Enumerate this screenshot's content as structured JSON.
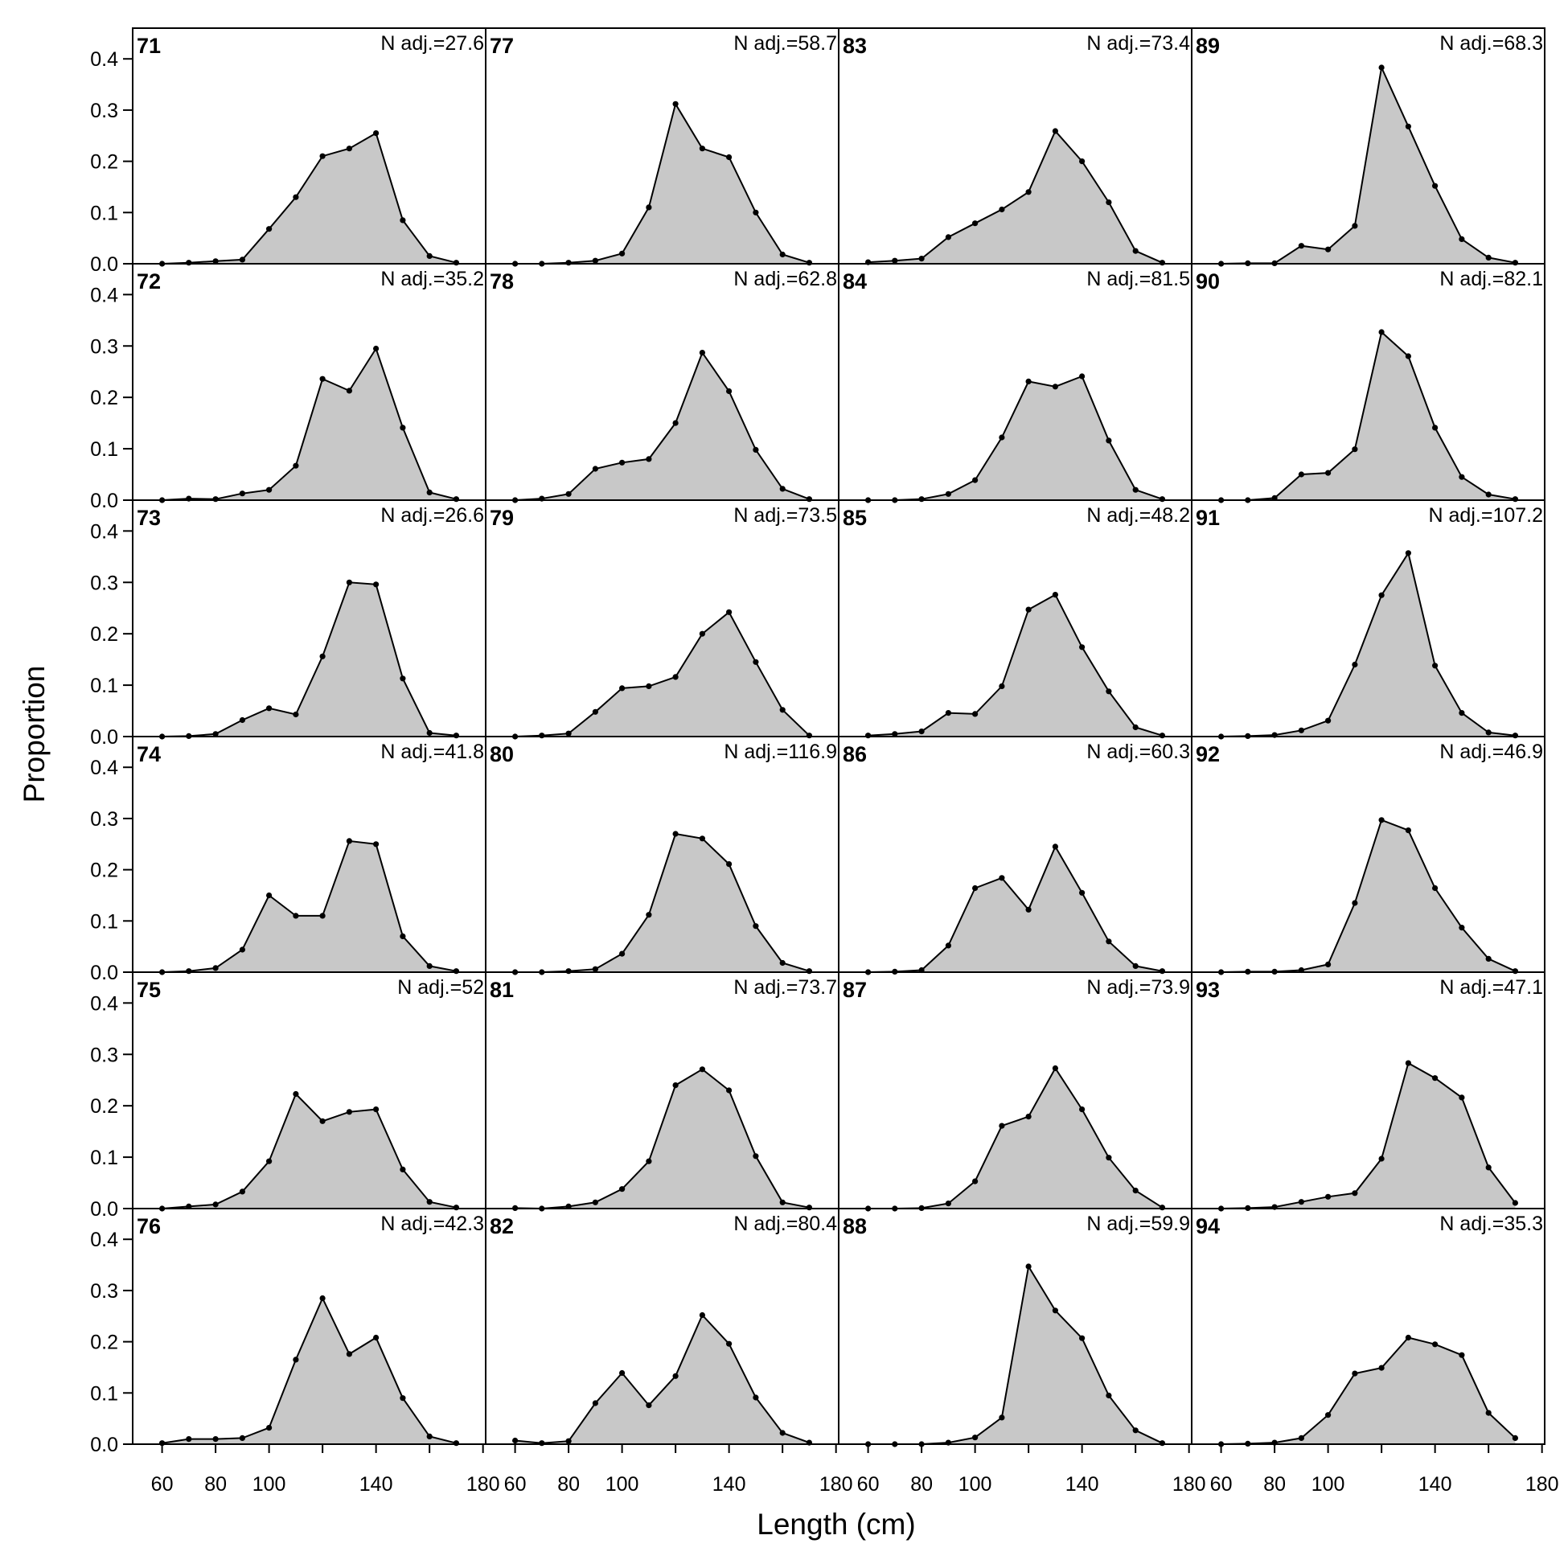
{
  "chart_data": {
    "type": "area",
    "title": "",
    "xlabel": "Length (cm)",
    "ylabel": "Proportion",
    "xlim": [
      49,
      181
    ],
    "ylim": [
      0,
      0.46
    ],
    "xticks": [
      60,
      80,
      100,
      140,
      180
    ],
    "yticks": [
      0.0,
      0.1,
      0.2,
      0.3,
      0.4
    ],
    "xtick_labels": [
      "60",
      "80",
      "100",
      "140",
      "180"
    ],
    "ytick_labels": [
      "0.0",
      "0.1",
      "0.2",
      "0.3",
      "0.4"
    ],
    "layout": "4 columns x 6 rows, filled column-wise",
    "grid": false,
    "legend": "none",
    "colors": {
      "fill": "#c8c8c8",
      "line": "#000000",
      "frame": "#000000"
    },
    "x": [
      60,
      70,
      80,
      90,
      100,
      110,
      120,
      130,
      140,
      150,
      160,
      170
    ],
    "panels": [
      {
        "label": "71",
        "n": "N adj.=27.6",
        "values": [
          0.0,
          0.002,
          0.005,
          0.008,
          0.068,
          0.13,
          0.21,
          0.225,
          0.255,
          0.085,
          0.015,
          0.002
        ]
      },
      {
        "label": "72",
        "n": "N adj.=35.2",
        "values": [
          0.0,
          0.003,
          0.002,
          0.013,
          0.02,
          0.067,
          0.236,
          0.213,
          0.295,
          0.141,
          0.015,
          0.002
        ]
      },
      {
        "label": "73",
        "n": "N adj.=26.6",
        "values": [
          0.0,
          0.001,
          0.005,
          0.032,
          0.055,
          0.043,
          0.156,
          0.3,
          0.296,
          0.113,
          0.007,
          0.002
        ]
      },
      {
        "label": "74",
        "n": "N adj.=41.8",
        "values": [
          0.0,
          0.002,
          0.008,
          0.044,
          0.15,
          0.11,
          0.11,
          0.256,
          0.25,
          0.07,
          0.012,
          0.002
        ]
      },
      {
        "label": "75",
        "n": "N adj.=52",
        "values": [
          0.0,
          0.004,
          0.008,
          0.033,
          0.092,
          0.223,
          0.17,
          0.188,
          0.193,
          0.076,
          0.013,
          0.002
        ]
      },
      {
        "label": "76",
        "n": "N adj.=42.3",
        "values": [
          0.002,
          0.01,
          0.01,
          0.012,
          0.032,
          0.165,
          0.285,
          0.176,
          0.208,
          0.09,
          0.015,
          0.002
        ]
      },
      {
        "label": "77",
        "n": "N adj.=58.7",
        "values": [
          0.0,
          0.0,
          0.002,
          0.006,
          0.02,
          0.11,
          0.312,
          0.225,
          0.208,
          0.1,
          0.018,
          0.002
        ]
      },
      {
        "label": "78",
        "n": "N adj.=62.8",
        "values": [
          0.0,
          0.003,
          0.012,
          0.061,
          0.073,
          0.08,
          0.15,
          0.287,
          0.212,
          0.098,
          0.022,
          0.002
        ]
      },
      {
        "label": "79",
        "n": "N adj.=73.5",
        "values": [
          0.0,
          0.002,
          0.006,
          0.048,
          0.094,
          0.098,
          0.116,
          0.2,
          0.242,
          0.145,
          0.052,
          0.002
        ]
      },
      {
        "label": "80",
        "n": "N adj.=116.9",
        "values": [
          0.0,
          0.0,
          0.002,
          0.006,
          0.036,
          0.112,
          0.27,
          0.261,
          0.211,
          0.09,
          0.018,
          0.002
        ]
      },
      {
        "label": "81",
        "n": "N adj.=73.7",
        "values": [
          0.001,
          0.0,
          0.004,
          0.012,
          0.038,
          0.092,
          0.24,
          0.271,
          0.23,
          0.102,
          0.012,
          0.002
        ]
      },
      {
        "label": "82",
        "n": "N adj.=80.4",
        "values": [
          0.007,
          0.002,
          0.006,
          0.08,
          0.139,
          0.076,
          0.133,
          0.252,
          0.196,
          0.091,
          0.022,
          0.003
        ]
      },
      {
        "label": "83",
        "n": "N adj.=73.4",
        "values": [
          0.003,
          0.006,
          0.01,
          0.052,
          0.079,
          0.106,
          0.14,
          0.259,
          0.2,
          0.12,
          0.025,
          0.002
        ]
      },
      {
        "label": "84",
        "n": "N adj.=81.5",
        "values": [
          0.0,
          0.0,
          0.002,
          0.012,
          0.039,
          0.122,
          0.231,
          0.221,
          0.241,
          0.116,
          0.02,
          0.002
        ]
      },
      {
        "label": "85",
        "n": "N adj.=48.2",
        "values": [
          0.002,
          0.005,
          0.01,
          0.046,
          0.044,
          0.098,
          0.247,
          0.276,
          0.174,
          0.088,
          0.018,
          0.002
        ]
      },
      {
        "label": "86",
        "n": "N adj.=60.3",
        "values": [
          0.0,
          0.001,
          0.004,
          0.052,
          0.164,
          0.184,
          0.122,
          0.245,
          0.155,
          0.06,
          0.012,
          0.002
        ]
      },
      {
        "label": "87",
        "n": "N adj.=73.9",
        "values": [
          0.0,
          0.0,
          0.001,
          0.01,
          0.053,
          0.161,
          0.179,
          0.273,
          0.193,
          0.099,
          0.035,
          0.002
        ]
      },
      {
        "label": "88",
        "n": "N adj.=59.9",
        "values": [
          0.0,
          0.0,
          0.0,
          0.003,
          0.013,
          0.052,
          0.347,
          0.261,
          0.207,
          0.095,
          0.027,
          0.002
        ]
      },
      {
        "label": "89",
        "n": "N adj.=68.3",
        "values": [
          0.0,
          0.001,
          0.001,
          0.035,
          0.028,
          0.074,
          0.383,
          0.268,
          0.152,
          0.048,
          0.012,
          0.002
        ]
      },
      {
        "label": "90",
        "n": "N adj.=82.1",
        "values": [
          0.0,
          0.0,
          0.004,
          0.05,
          0.053,
          0.099,
          0.327,
          0.28,
          0.141,
          0.045,
          0.011,
          0.002
        ]
      },
      {
        "label": "91",
        "n": "N adj.=107.2",
        "values": [
          0.0,
          0.001,
          0.003,
          0.012,
          0.031,
          0.14,
          0.275,
          0.357,
          0.138,
          0.046,
          0.008,
          0.002
        ]
      },
      {
        "label": "92",
        "n": "N adj.=46.9",
        "values": [
          0.0,
          0.001,
          0.001,
          0.004,
          0.015,
          0.135,
          0.297,
          0.277,
          0.164,
          0.087,
          0.026,
          0.002
        ]
      },
      {
        "label": "93",
        "n": "N adj.=47.1",
        "values": [
          0.0,
          0.001,
          0.003,
          0.013,
          0.023,
          0.03,
          0.097,
          0.283,
          0.254,
          0.216,
          0.08,
          0.011
        ]
      },
      {
        "label": "94",
        "n": "N adj.=35.3",
        "values": [
          0.0,
          0.001,
          0.003,
          0.012,
          0.057,
          0.138,
          0.149,
          0.208,
          0.195,
          0.174,
          0.061,
          0.012
        ]
      }
    ]
  }
}
